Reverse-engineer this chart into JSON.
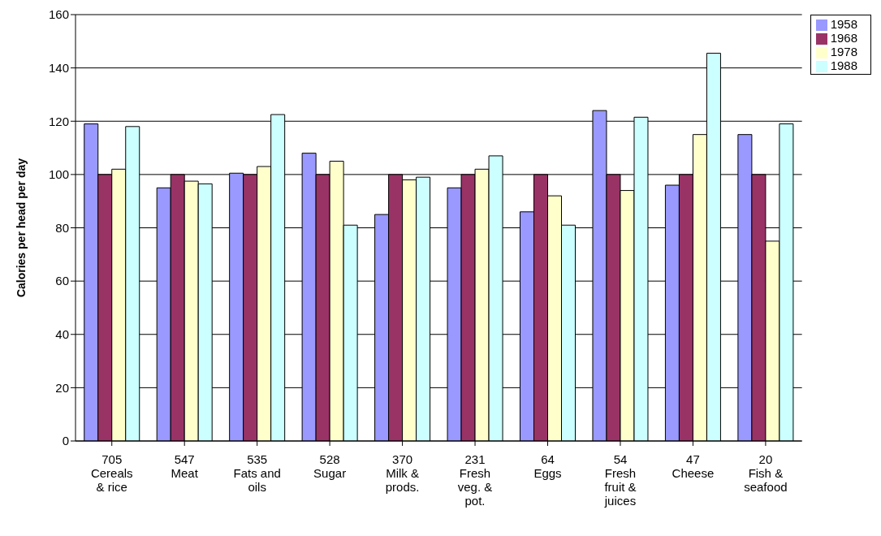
{
  "chart_data": {
    "type": "bar",
    "ylabel": "Calories per head per day",
    "categories": [
      "705\nCereals\n& rice",
      "547\nMeat",
      "535\nFats and\noils",
      "528\nSugar",
      "370\nMilk &\nprods.",
      "231\nFresh\nveg. &\npot.",
      "64\nEggs",
      "54\nFresh\nfruit &\njuices",
      "47\nCheese",
      "20\nFish &\nseafood"
    ],
    "series": [
      {
        "name": "1958",
        "color": "#9999ff",
        "values": [
          119,
          95,
          100.5,
          108,
          85,
          95,
          86,
          124,
          96,
          115
        ]
      },
      {
        "name": "1968",
        "color": "#993366",
        "values": [
          100,
          100,
          100,
          100,
          100,
          100,
          100,
          100,
          100,
          100
        ]
      },
      {
        "name": "1978",
        "color": "#ffffcc",
        "values": [
          102,
          97.5,
          103,
          105,
          98,
          102,
          92,
          94,
          115,
          75
        ]
      },
      {
        "name": "1988",
        "color": "#ccffff",
        "values": [
          118,
          96.5,
          122.5,
          81,
          99,
          107,
          81,
          121.5,
          145.5,
          119
        ]
      }
    ],
    "ylim": [
      0,
      160
    ],
    "yticks": [
      0,
      20,
      40,
      60,
      80,
      100,
      120,
      140,
      160
    ],
    "grid": "y",
    "legend": "top right"
  }
}
